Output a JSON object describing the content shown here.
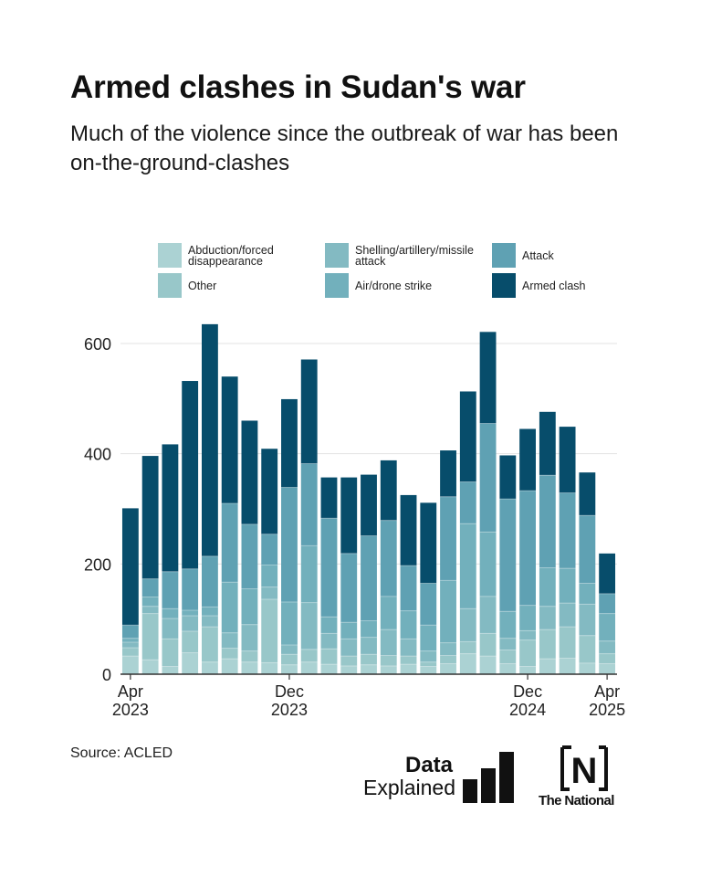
{
  "title": "Armed clashes in Sudan's war",
  "subtitle": "Much of the violence since the outbreak of war has been on-the-ground-clashes",
  "source": "Source: ACLED",
  "logos": {
    "data_explained_line1": "Data",
    "data_explained_line2": "Explained",
    "national_mark": "N",
    "national_name": "The National"
  },
  "colors": {
    "abduction": "#abd2d3",
    "other": "#98c7c9",
    "shelling": "#83bac2",
    "air_drone": "#72b0bc",
    "attack": "#5fa1b3",
    "armed_clash": "#074d6b",
    "grid": "#e3e3e3",
    "axis": "#333333"
  },
  "chart_data": {
    "type": "bar",
    "stacked": true,
    "title": "Armed clashes in Sudan's war",
    "xlabel": "",
    "ylabel": "",
    "ylim": [
      0,
      640
    ],
    "yticks": [
      0,
      200,
      400,
      600
    ],
    "grid": true,
    "legend_position": "top",
    "categories": [
      "Apr 2023",
      "May 2023",
      "Jun 2023",
      "Jul 2023",
      "Aug 2023",
      "Sep 2023",
      "Oct 2023",
      "Nov 2023",
      "Dec 2023",
      "Jan 2024",
      "Feb 2024",
      "Mar 2024",
      "Apr 2024",
      "May 2024",
      "Jun 2024",
      "Jul 2024",
      "Aug 2024",
      "Sep 2024",
      "Oct 2024",
      "Nov 2024",
      "Dec 2024",
      "Jan 2025",
      "Feb 2025",
      "Mar 2025",
      "Apr 2025"
    ],
    "x_tick_labels": [
      {
        "index": 0,
        "line1": "Apr",
        "line2": "2023"
      },
      {
        "index": 8,
        "line1": "Dec",
        "line2": "2023"
      },
      {
        "index": 20,
        "line1": "Dec",
        "line2": "2024"
      },
      {
        "index": 24,
        "line1": "Apr",
        "line2": "2025"
      }
    ],
    "series": [
      {
        "name": "Abduction/forced disappearance",
        "color_key": "abduction",
        "values": [
          33,
          26,
          14,
          39,
          22,
          28,
          22,
          21,
          17,
          22,
          18,
          15,
          17,
          15,
          18,
          14,
          19,
          37,
          33,
          19,
          14,
          28,
          29,
          20,
          19
        ]
      },
      {
        "name": "Other",
        "color_key": "other",
        "values": [
          15,
          84,
          50,
          39,
          64,
          19,
          20,
          115,
          19,
          23,
          28,
          18,
          19,
          19,
          15,
          8,
          15,
          22,
          41,
          25,
          48,
          53,
          57,
          50,
          18
        ]
      },
      {
        "name": "Shelling/artillery/missile attack",
        "color_key": "shelling",
        "values": [
          10,
          13,
          37,
          28,
          20,
          28,
          48,
          22,
          17,
          85,
          28,
          31,
          31,
          47,
          31,
          20,
          23,
          60,
          67,
          21,
          17,
          42,
          43,
          57,
          23
        ]
      },
      {
        "name": "Air/drone strike",
        "color_key": "air_drone",
        "values": [
          7,
          17,
          18,
          10,
          16,
          92,
          65,
          40,
          78,
          103,
          30,
          30,
          30,
          60,
          51,
          47,
          113,
          154,
          117,
          49,
          46,
          70,
          63,
          38,
          50
        ]
      },
      {
        "name": "Attack",
        "color_key": "attack",
        "values": [
          24,
          33,
          67,
          75,
          92,
          143,
          117,
          56,
          208,
          149,
          179,
          125,
          154,
          138,
          82,
          76,
          152,
          76,
          197,
          204,
          208,
          168,
          137,
          123,
          36
        ]
      },
      {
        "name": "Armed clash",
        "color_key": "armed_clash",
        "values": [
          212,
          223,
          231,
          341,
          421,
          230,
          188,
          155,
          160,
          189,
          74,
          138,
          111,
          109,
          128,
          146,
          84,
          164,
          166,
          79,
          112,
          115,
          120,
          78,
          73
        ]
      }
    ],
    "totals": [
      301,
      396,
      417,
      532,
      635,
      540,
      460,
      409,
      499,
      571,
      357,
      357,
      362,
      388,
      325,
      311,
      406,
      513,
      621,
      397,
      445,
      476,
      449,
      366,
      219
    ]
  }
}
